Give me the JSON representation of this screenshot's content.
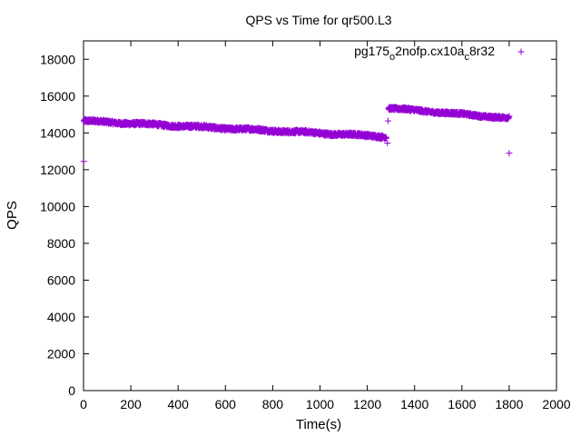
{
  "chart_data": {
    "type": "scatter",
    "title": "QPS vs Time for qr500.L3",
    "xlabel": "Time(s)",
    "ylabel": "QPS",
    "xlim": [
      0,
      2000
    ],
    "ylim": [
      0,
      19000
    ],
    "xticks": [
      0,
      200,
      400,
      600,
      800,
      1000,
      1200,
      1400,
      1600,
      1800,
      2000
    ],
    "yticks": [
      0,
      2000,
      4000,
      6000,
      8000,
      10000,
      12000,
      14000,
      16000,
      18000
    ],
    "grid": false,
    "legend_position": "top-right",
    "marker": "plus",
    "series": [
      {
        "name_parts": [
          "pg175",
          "o",
          "2nofp.cx10a",
          "c",
          "8r32"
        ],
        "color": "#9400d3",
        "segments": [
          {
            "x_start": 2,
            "x_end": 1280,
            "y_start": 14650,
            "y_end": 13800,
            "jitter": 90
          },
          {
            "x_start": 1290,
            "x_end": 1800,
            "y_start": 15350,
            "y_end": 14800,
            "jitter": 80
          }
        ],
        "outliers": [
          {
            "x": 1,
            "y": 12450
          },
          {
            "x": 1285,
            "y": 13450
          },
          {
            "x": 1288,
            "y": 14650
          },
          {
            "x": 1800,
            "y": 12900
          }
        ]
      }
    ]
  }
}
